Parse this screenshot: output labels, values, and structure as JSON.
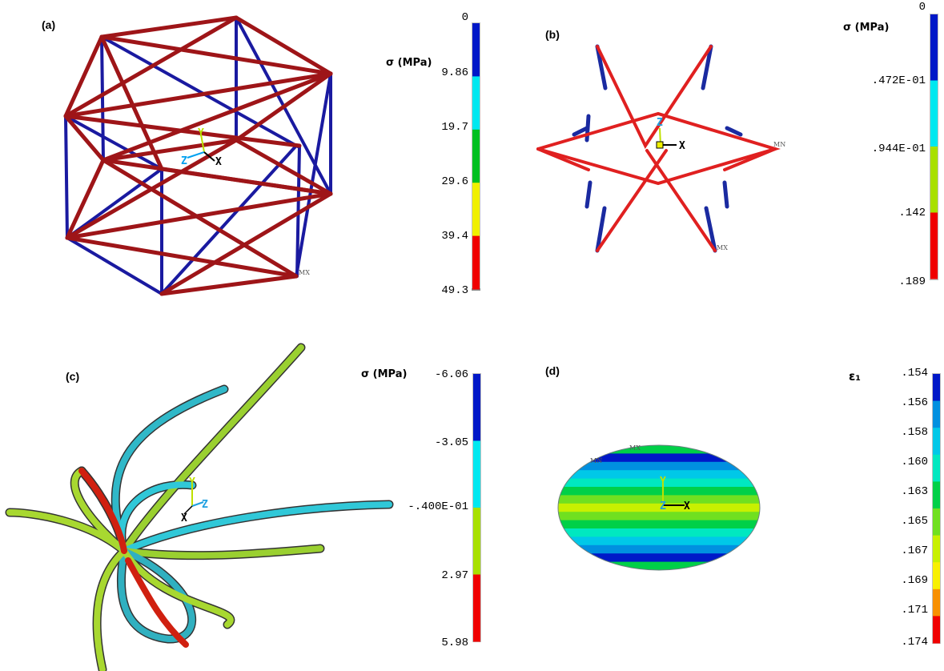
{
  "panels": [
    {
      "label": "(a)",
      "legend_title": "σ (MPa)",
      "ticks": [
        "0",
        "9.86",
        "19.7",
        "29.6",
        "39.4",
        "49.3"
      ],
      "colors": [
        "#0018c8",
        "#00e8f0",
        "#00c020",
        "#f0f000",
        "#f00000"
      ],
      "markers": [
        "MX"
      ],
      "axes": [
        "Y",
        "Z",
        "X"
      ]
    },
    {
      "label": "(b)",
      "legend_title": "σ (MPa)",
      "ticks": [
        "0",
        ".472E-01",
        ".944E-01",
        ".142",
        ".189"
      ],
      "colors": [
        "#0018c8",
        "#00e8f0",
        "#a8e000",
        "#f00000"
      ],
      "markers": [
        "MN",
        "MX"
      ],
      "axes": [
        "Z",
        "X"
      ]
    },
    {
      "label": "(c)",
      "legend_title": "σ (MPa)",
      "ticks": [
        "-6.06",
        "-3.05",
        "-.400E-01",
        "2.97",
        "5.98"
      ],
      "colors": [
        "#0018c8",
        "#00e8f0",
        "#a8e000",
        "#f00000"
      ],
      "markers": [],
      "axes": [
        "Y",
        "Z",
        "X"
      ]
    },
    {
      "label": "(d)",
      "legend_title": "ε₁",
      "ticks": [
        ".154",
        ".156",
        ".158",
        ".160",
        ".163",
        ".165",
        ".167",
        ".169",
        ".171",
        ".174"
      ],
      "colors": [
        "#0018c8",
        "#0090e0",
        "#00c8e8",
        "#00e8c0",
        "#00d048",
        "#70e020",
        "#c8f000",
        "#f8f000",
        "#f89000",
        "#f00000"
      ],
      "markers": [
        "MX",
        "MN"
      ],
      "axes": [
        "Y",
        "Z",
        "X"
      ]
    }
  ]
}
